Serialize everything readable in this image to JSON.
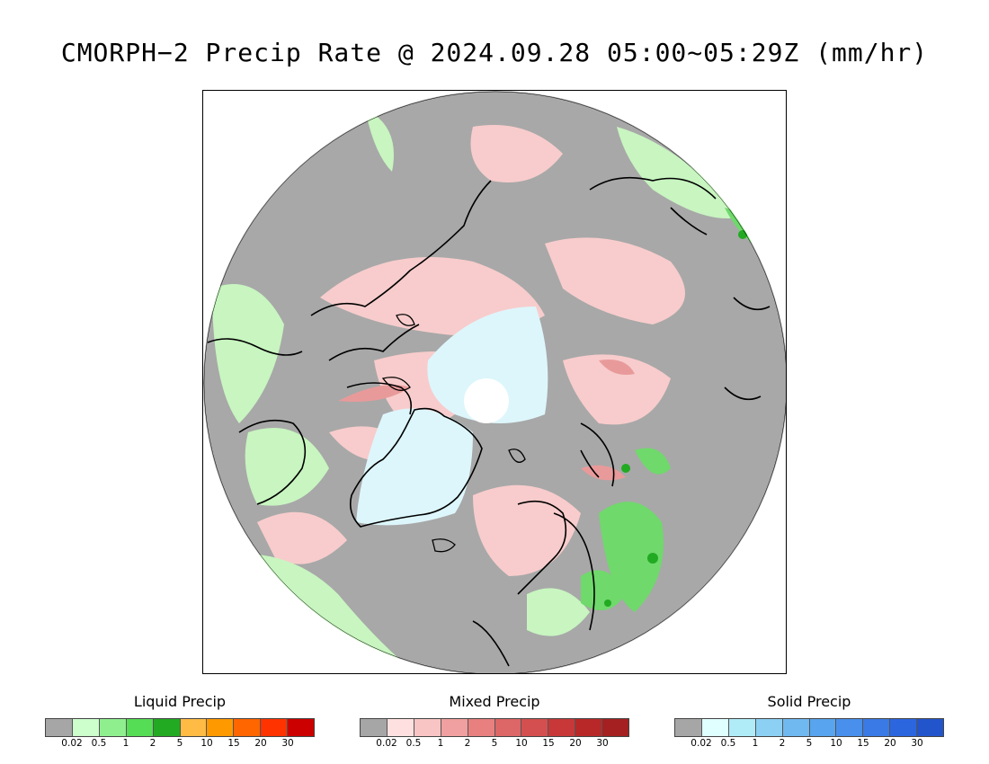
{
  "title": "CMORPH−2 Precip Rate @ 2024.09.28 05:00~05:29Z (mm/hr)",
  "map": {
    "projection": "north polar stereographic",
    "background_color": "#a8a8a8",
    "regions": [
      {
        "name": "greenland-ice",
        "type": "solid",
        "color": "#ddf6fb"
      },
      {
        "name": "north-pole-ice",
        "type": "solid",
        "color": "#ddf6fb"
      },
      {
        "name": "canada-arctic",
        "type": "mixed",
        "color": "#f8cccc"
      },
      {
        "name": "north-atlantic",
        "type": "liquid",
        "color": "#c8f5c0"
      },
      {
        "name": "scandinavia",
        "type": "liquid",
        "color": "#7de07a"
      },
      {
        "name": "siberia",
        "type": "mixed",
        "color": "#f8cccc"
      }
    ]
  },
  "legends": [
    {
      "name": "liquid",
      "title": "Liquid Precip",
      "colors": [
        "#a6a6a6",
        "#ccffcc",
        "#8fef8f",
        "#55dd55",
        "#22aa22",
        "#ffbb44",
        "#ff9900",
        "#ff6600",
        "#ff3300",
        "#cc0000"
      ],
      "ticks": [
        "0.02",
        "0.5",
        "1",
        "2",
        "5",
        "10",
        "15",
        "20",
        "30"
      ]
    },
    {
      "name": "mixed",
      "title": "Mixed Precip",
      "colors": [
        "#a6a6a6",
        "#ffe0e0",
        "#f8c4c4",
        "#f0a0a0",
        "#e88080",
        "#dd6666",
        "#d44f4f",
        "#c83838",
        "#b82828",
        "#a52020"
      ],
      "ticks": [
        "0.02",
        "0.5",
        "1",
        "2",
        "5",
        "10",
        "15",
        "20",
        "30"
      ]
    },
    {
      "name": "solid",
      "title": "Solid Precip",
      "colors": [
        "#a6a6a6",
        "#e0ffff",
        "#b0ecf8",
        "#8cd0f4",
        "#70b8f0",
        "#58a4ee",
        "#4890ec",
        "#3a7ae6",
        "#2c66df",
        "#2255cc"
      ],
      "ticks": [
        "0.02",
        "0.5",
        "1",
        "2",
        "5",
        "10",
        "15",
        "20",
        "30"
      ]
    }
  ]
}
